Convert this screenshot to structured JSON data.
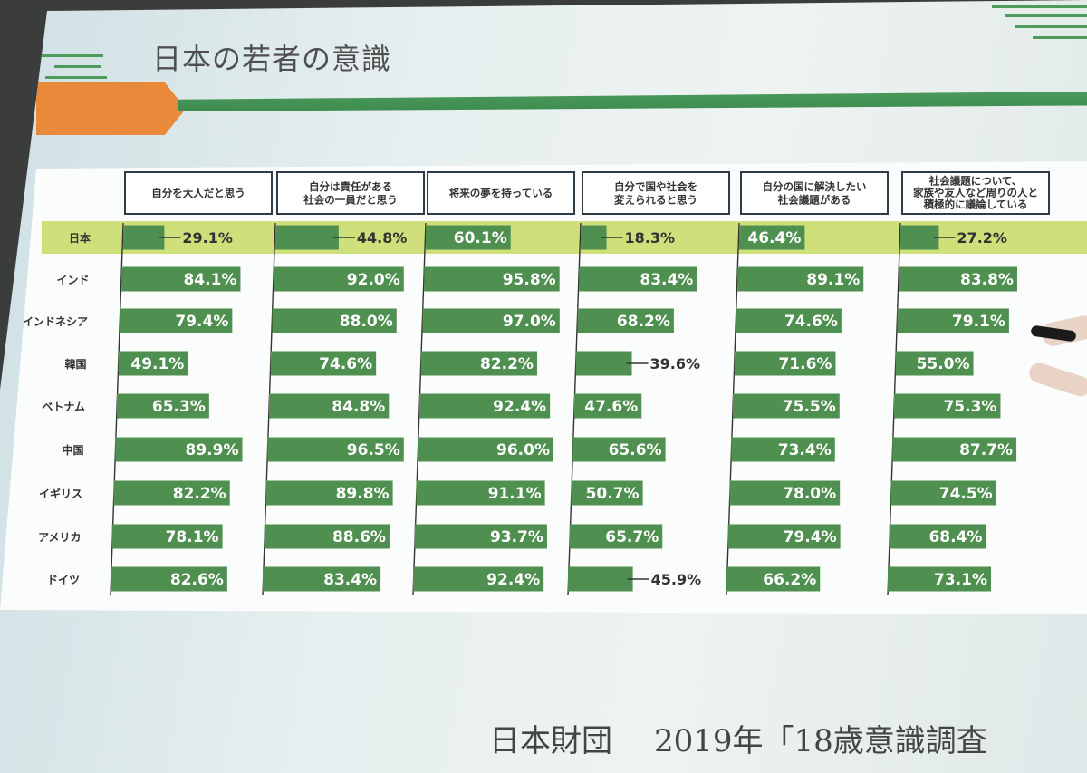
{
  "slide": {
    "title": "日本の若者の意識",
    "footer_org": "日本財団",
    "footer_survey": "2019年「18歳意識調査"
  },
  "colors": {
    "bar": "#4f8f4f",
    "highlight_row": "#cfe07a",
    "accent_orange": "#e98a3a",
    "accent_green": "#4a9a5b"
  },
  "chart_data": {
    "type": "bar",
    "orientation": "horizontal",
    "unit": "%",
    "columns": [
      "自分を大人だと思う",
      "自分は責任がある\n社会の一員だと思う",
      "将来の夢を持っている",
      "自分で国や社会を\n変えられると思う",
      "自分の国に解決したい\n社会議題がある",
      "社会議題について、\n家族や友人など周りの人と\n積極的に議論している"
    ],
    "countries": [
      "日本",
      "インド",
      "インドネシア",
      "韓国",
      "ベトナム",
      "中国",
      "イギリス",
      "アメリカ",
      "ドイツ"
    ],
    "highlight_country": "日本",
    "series": [
      {
        "values": [
          29.1,
          84.1,
          79.4,
          49.1,
          65.3,
          89.9,
          82.2,
          78.1,
          82.6
        ]
      },
      {
        "values": [
          44.8,
          92.0,
          88.0,
          74.6,
          84.8,
          96.5,
          89.8,
          88.6,
          83.4
        ]
      },
      {
        "values": [
          60.1,
          95.8,
          97.0,
          82.2,
          92.4,
          96.0,
          91.1,
          93.7,
          92.4
        ]
      },
      {
        "values": [
          18.3,
          83.4,
          68.2,
          39.6,
          47.6,
          65.6,
          50.7,
          65.7,
          45.9
        ]
      },
      {
        "values": [
          46.4,
          89.1,
          74.6,
          71.6,
          75.5,
          73.4,
          78.0,
          79.4,
          66.2
        ]
      },
      {
        "values": [
          27.2,
          83.8,
          79.1,
          55.0,
          75.3,
          87.7,
          74.5,
          68.4,
          73.1
        ]
      }
    ]
  }
}
